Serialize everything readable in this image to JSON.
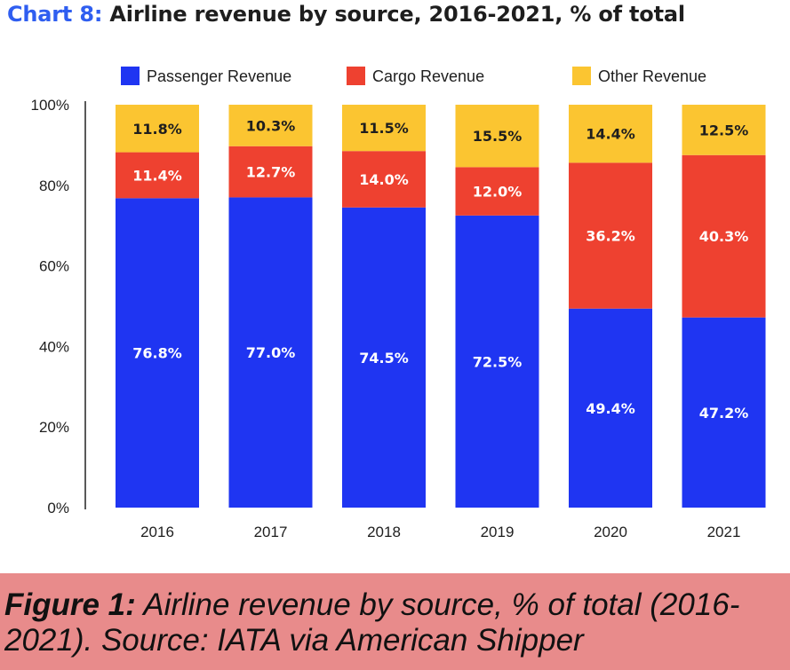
{
  "title": {
    "prefix": "Chart 8:",
    "text": "Airline revenue by source, 2016-2021, % of total"
  },
  "caption": {
    "label": "Figure 1:",
    "text": " Airline revenue by source, % of total (2016-2021). Source: IATA via American Shipper"
  },
  "colors": {
    "passenger": "#1f35f2",
    "cargo": "#ee4130",
    "other": "#fbc531",
    "caption_bg": "#e88b8b"
  },
  "chart_data": {
    "type": "bar",
    "stacked": true,
    "categories": [
      "2016",
      "2017",
      "2018",
      "2019",
      "2020",
      "2021"
    ],
    "series": [
      {
        "name": "Passenger Revenue",
        "values": [
          76.8,
          77.0,
          74.5,
          72.5,
          49.4,
          47.2
        ],
        "labels": [
          "76.8%",
          "77.0%",
          "74.5%",
          "72.5%",
          "49.4%",
          "47.2%"
        ]
      },
      {
        "name": "Cargo Revenue",
        "values": [
          11.4,
          12.7,
          14.0,
          12.0,
          36.2,
          40.3
        ],
        "labels": [
          "11.4%",
          "12.7%",
          "14.0%",
          "12.0%",
          "36.2%",
          "40.3%"
        ]
      },
      {
        "name": "Other Revenue",
        "values": [
          11.8,
          10.3,
          11.5,
          15.5,
          14.4,
          12.5
        ],
        "labels": [
          "11.8%",
          "10.3%",
          "11.5%",
          "15.5%",
          "14.4%",
          "12.5%"
        ]
      }
    ],
    "ylim": [
      0,
      100
    ],
    "yticks": [
      "0%",
      "20%",
      "40%",
      "60%",
      "80%",
      "100%"
    ],
    "legend_position": "top",
    "grid": false
  }
}
